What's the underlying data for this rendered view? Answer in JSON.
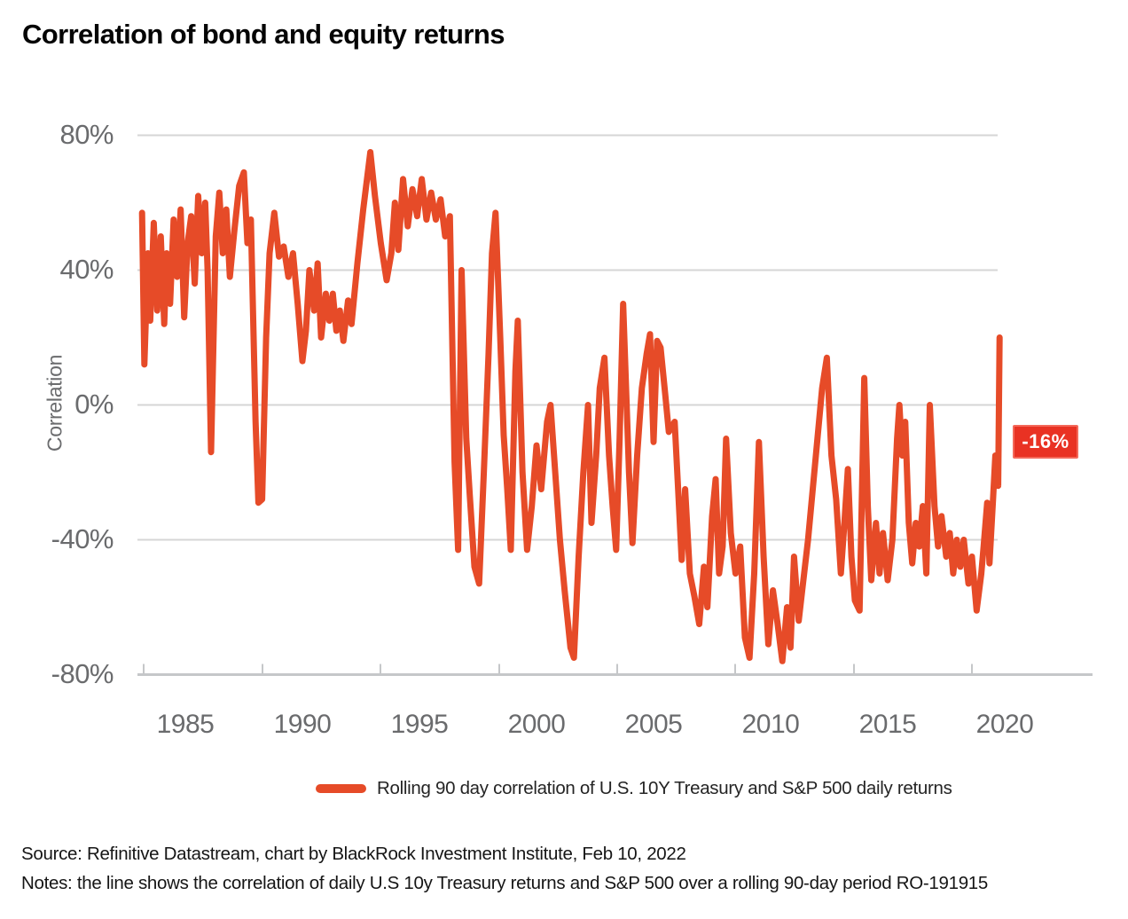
{
  "title": "Correlation of bond and equity returns",
  "colors": {
    "line": "#E64B28",
    "annotation_bg": "#E93223",
    "annotation_border": "#F4695A",
    "grid": "#D6D6D6",
    "axis": "#C5C7C9",
    "tick_text": "#6A6B6D",
    "body_text": "#151515"
  },
  "y_axis": {
    "label": "Correlation",
    "ticks": [
      {
        "label": "80%",
        "value": 80
      },
      {
        "label": "40%",
        "value": 40
      },
      {
        "label": "0%",
        "value": 0
      },
      {
        "label": "-40%",
        "value": -40
      },
      {
        "label": "-80%",
        "value": -80
      }
    ]
  },
  "x_axis": {
    "ticks": [
      {
        "label": "1985",
        "value": 1985
      },
      {
        "label": "1990",
        "value": 1990
      },
      {
        "label": "1995",
        "value": 1995
      },
      {
        "label": "2000",
        "value": 2000
      },
      {
        "label": "2005",
        "value": 2005
      },
      {
        "label": "2010",
        "value": 2010
      },
      {
        "label": "2015",
        "value": 2015
      },
      {
        "label": "2020",
        "value": 2020
      }
    ]
  },
  "annotation": {
    "label": "-16%",
    "value": -16
  },
  "legend": {
    "label": "Rolling 90 day correlation of U.S. 10Y Treasury and S&P 500 daily returns"
  },
  "source": "Source: Refinitive Datastream, chart by BlackRock Investment Institute, Feb 10, 2022",
  "notes": "Notes: the line shows the correlation of daily U.S 10y Treasury returns and S&P 500 over a rolling 90-day period RO-191915",
  "chart_data": {
    "type": "line",
    "title": "Correlation of bond and equity returns",
    "xlabel": "",
    "ylabel": "Correlation",
    "ylim": [
      -80,
      80
    ],
    "xlim": [
      1983,
      2020.3
    ],
    "y_ticks_percent": [
      80,
      40,
      0,
      -40,
      -80
    ],
    "x_ticks": [
      1985,
      1990,
      1995,
      2000,
      2005,
      2010,
      2015,
      2020
    ],
    "grid": "horizontal",
    "legend_position": "bottom",
    "annotation": {
      "text": "-16%",
      "value": -16
    },
    "series": [
      {
        "name": "Rolling 90 day correlation of U.S. 10Y Treasury and S&P 500 daily returns",
        "color": "#E64B28",
        "unit": "percent",
        "points": [
          [
            1983.15,
            57
          ],
          [
            1983.25,
            12
          ],
          [
            1983.4,
            45
          ],
          [
            1983.5,
            25
          ],
          [
            1983.65,
            54
          ],
          [
            1983.8,
            28
          ],
          [
            1983.95,
            50
          ],
          [
            1984.1,
            24
          ],
          [
            1984.2,
            45
          ],
          [
            1984.35,
            30
          ],
          [
            1984.5,
            55
          ],
          [
            1984.65,
            38
          ],
          [
            1984.8,
            58
          ],
          [
            1984.95,
            26
          ],
          [
            1985.1,
            48
          ],
          [
            1985.25,
            56
          ],
          [
            1985.4,
            36
          ],
          [
            1985.55,
            62
          ],
          [
            1985.7,
            45
          ],
          [
            1985.85,
            60
          ],
          [
            1985.95,
            40
          ],
          [
            1986.1,
            -14
          ],
          [
            1986.3,
            50
          ],
          [
            1986.45,
            63
          ],
          [
            1986.6,
            45
          ],
          [
            1986.75,
            58
          ],
          [
            1986.9,
            38
          ],
          [
            1987.1,
            52
          ],
          [
            1987.3,
            65
          ],
          [
            1987.5,
            69
          ],
          [
            1987.65,
            48
          ],
          [
            1987.8,
            55
          ],
          [
            1988.0,
            -5
          ],
          [
            1988.12,
            -29
          ],
          [
            1988.28,
            -28
          ],
          [
            1988.45,
            20
          ],
          [
            1988.6,
            45
          ],
          [
            1988.8,
            57
          ],
          [
            1989.0,
            44
          ],
          [
            1989.2,
            47
          ],
          [
            1989.4,
            38
          ],
          [
            1989.6,
            45
          ],
          [
            1989.8,
            30
          ],
          [
            1990.0,
            13
          ],
          [
            1990.15,
            22
          ],
          [
            1990.3,
            40
          ],
          [
            1990.5,
            28
          ],
          [
            1990.65,
            42
          ],
          [
            1990.8,
            20
          ],
          [
            1991.0,
            33
          ],
          [
            1991.15,
            25
          ],
          [
            1991.3,
            33
          ],
          [
            1991.45,
            22
          ],
          [
            1991.6,
            28
          ],
          [
            1991.75,
            19
          ],
          [
            1991.95,
            31
          ],
          [
            1992.1,
            24
          ],
          [
            1992.35,
            42
          ],
          [
            1992.6,
            58
          ],
          [
            1992.9,
            75
          ],
          [
            1993.1,
            62
          ],
          [
            1993.35,
            48
          ],
          [
            1993.6,
            37
          ],
          [
            1993.8,
            45
          ],
          [
            1993.95,
            60
          ],
          [
            1994.1,
            46
          ],
          [
            1994.3,
            67
          ],
          [
            1994.5,
            53
          ],
          [
            1994.7,
            64
          ],
          [
            1994.9,
            56
          ],
          [
            1995.1,
            67
          ],
          [
            1995.3,
            55
          ],
          [
            1995.5,
            63
          ],
          [
            1995.7,
            55
          ],
          [
            1995.9,
            61
          ],
          [
            1996.1,
            50
          ],
          [
            1996.3,
            56
          ],
          [
            1996.5,
            -17
          ],
          [
            1996.65,
            -43
          ],
          [
            1996.8,
            40
          ],
          [
            1997.0,
            -10
          ],
          [
            1997.15,
            -27
          ],
          [
            1997.35,
            -48
          ],
          [
            1997.55,
            -53
          ],
          [
            1997.75,
            -20
          ],
          [
            1997.95,
            15
          ],
          [
            1998.1,
            45
          ],
          [
            1998.25,
            57
          ],
          [
            1998.45,
            20
          ],
          [
            1998.6,
            -9
          ],
          [
            1998.75,
            -25
          ],
          [
            1998.9,
            -43
          ],
          [
            1999.1,
            10
          ],
          [
            1999.2,
            25
          ],
          [
            1999.4,
            -20
          ],
          [
            1999.6,
            -43
          ],
          [
            1999.8,
            -30
          ],
          [
            2000.0,
            -12
          ],
          [
            2000.2,
            -25
          ],
          [
            2000.45,
            -5
          ],
          [
            2000.6,
            0
          ],
          [
            2000.8,
            -20
          ],
          [
            2001.0,
            -40
          ],
          [
            2001.2,
            -55
          ],
          [
            2001.45,
            -72
          ],
          [
            2001.6,
            -75
          ],
          [
            2001.8,
            -45
          ],
          [
            2002.0,
            -20
          ],
          [
            2002.2,
            0
          ],
          [
            2002.35,
            -35
          ],
          [
            2002.55,
            -15
          ],
          [
            2002.7,
            5
          ],
          [
            2002.9,
            14
          ],
          [
            2003.1,
            -15
          ],
          [
            2003.25,
            -30
          ],
          [
            2003.4,
            -43
          ],
          [
            2003.55,
            -10
          ],
          [
            2003.7,
            30
          ],
          [
            2003.95,
            -20
          ],
          [
            2004.1,
            -41
          ],
          [
            2004.3,
            -15
          ],
          [
            2004.5,
            5
          ],
          [
            2004.7,
            15
          ],
          [
            2004.85,
            21
          ],
          [
            2005.0,
            -11
          ],
          [
            2005.15,
            19
          ],
          [
            2005.3,
            17
          ],
          [
            2005.5,
            3
          ],
          [
            2005.65,
            -8
          ],
          [
            2005.9,
            -5
          ],
          [
            2006.05,
            -25
          ],
          [
            2006.2,
            -46
          ],
          [
            2006.35,
            -25
          ],
          [
            2006.55,
            -50
          ],
          [
            2006.75,
            -57
          ],
          [
            2006.95,
            -65
          ],
          [
            2007.15,
            -48
          ],
          [
            2007.3,
            -60
          ],
          [
            2007.5,
            -33
          ],
          [
            2007.65,
            -22
          ],
          [
            2007.8,
            -50
          ],
          [
            2007.95,
            -42
          ],
          [
            2008.1,
            -10
          ],
          [
            2008.3,
            -38
          ],
          [
            2008.5,
            -50
          ],
          [
            2008.7,
            -42
          ],
          [
            2008.9,
            -69
          ],
          [
            2009.1,
            -75
          ],
          [
            2009.3,
            -50
          ],
          [
            2009.5,
            -11
          ],
          [
            2009.7,
            -45
          ],
          [
            2009.9,
            -71
          ],
          [
            2010.1,
            -55
          ],
          [
            2010.3,
            -65
          ],
          [
            2010.5,
            -76
          ],
          [
            2010.7,
            -60
          ],
          [
            2010.85,
            -72
          ],
          [
            2011.0,
            -45
          ],
          [
            2011.2,
            -64
          ],
          [
            2011.35,
            -55
          ],
          [
            2011.6,
            -40
          ],
          [
            2011.8,
            -25
          ],
          [
            2012.0,
            -10
          ],
          [
            2012.2,
            5
          ],
          [
            2012.4,
            14
          ],
          [
            2012.6,
            -15
          ],
          [
            2012.8,
            -28
          ],
          [
            2013.0,
            -50
          ],
          [
            2013.15,
            -35
          ],
          [
            2013.3,
            -19
          ],
          [
            2013.45,
            -45
          ],
          [
            2013.6,
            -58
          ],
          [
            2013.8,
            -61
          ],
          [
            2014.0,
            8
          ],
          [
            2014.15,
            -30
          ],
          [
            2014.3,
            -52
          ],
          [
            2014.5,
            -35
          ],
          [
            2014.65,
            -50
          ],
          [
            2014.8,
            -38
          ],
          [
            2015.0,
            -52
          ],
          [
            2015.2,
            -40
          ],
          [
            2015.4,
            -10
          ],
          [
            2015.5,
            0
          ],
          [
            2015.62,
            -15
          ],
          [
            2015.75,
            -5
          ],
          [
            2015.9,
            -35
          ],
          [
            2016.05,
            -47
          ],
          [
            2016.2,
            -35
          ],
          [
            2016.35,
            -42
          ],
          [
            2016.5,
            -30
          ],
          [
            2016.65,
            -50
          ],
          [
            2016.8,
            0
          ],
          [
            2017.0,
            -30
          ],
          [
            2017.15,
            -42
          ],
          [
            2017.3,
            -33
          ],
          [
            2017.5,
            -45
          ],
          [
            2017.65,
            -38
          ],
          [
            2017.8,
            -50
          ],
          [
            2017.95,
            -40
          ],
          [
            2018.1,
            -48
          ],
          [
            2018.25,
            -40
          ],
          [
            2018.45,
            -53
          ],
          [
            2018.6,
            -45
          ],
          [
            2018.8,
            -61
          ],
          [
            2019.0,
            -50
          ],
          [
            2019.1,
            -42
          ],
          [
            2019.25,
            -29
          ],
          [
            2019.35,
            -47
          ],
          [
            2019.5,
            -28
          ],
          [
            2019.6,
            -15
          ],
          [
            2019.68,
            -16
          ],
          [
            2019.72,
            -24
          ],
          [
            2019.78,
            20
          ]
        ]
      }
    ]
  }
}
